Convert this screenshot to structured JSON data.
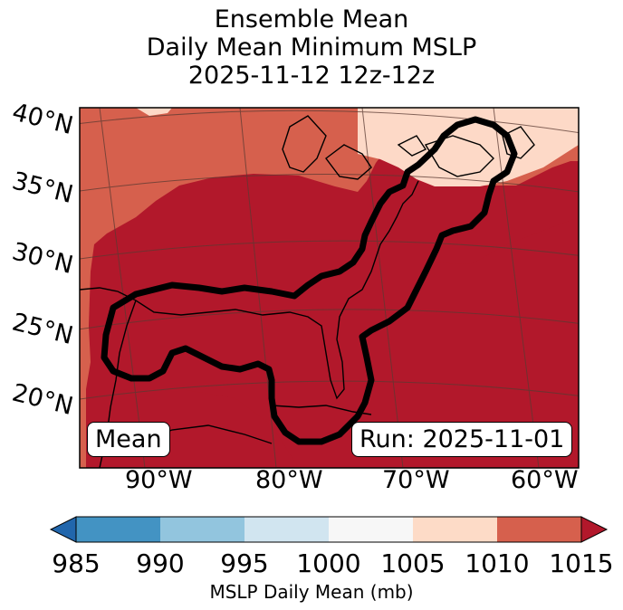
{
  "title": {
    "line1": "Ensemble Mean",
    "line2": "Daily Mean Minimum MSLP",
    "line3": "2025-11-12 12z-12z"
  },
  "map": {
    "lat_labels": [
      "40°N",
      "35°N",
      "30°N",
      "25°N",
      "20°N"
    ],
    "lon_labels": [
      "90°W",
      "80°W",
      "70°W",
      "60°W"
    ],
    "left_box": "Mean",
    "right_box": "Run: 2025-11-01",
    "colors": {
      "c1010_1015": "#b2182b",
      "c1005_1010": "#d6604d",
      "c1000_1005": "#fdd9c7",
      "contour": "#000000",
      "coast": "#000000",
      "grid": "#5a3a32"
    }
  },
  "colorbar": {
    "ticks": [
      "985",
      "990",
      "995",
      "1000",
      "1005",
      "1010",
      "1015"
    ],
    "label": "MSLP Daily Mean (mb)",
    "bins": [
      {
        "range": "<985",
        "color": "#2166ac"
      },
      {
        "range": "985-990",
        "color": "#4393c3"
      },
      {
        "range": "990-995",
        "color": "#92c5de"
      },
      {
        "range": "995-1000",
        "color": "#d1e5f0"
      },
      {
        "range": "1000-1005",
        "color": "#f7f7f7"
      },
      {
        "range": "1005-1010",
        "color": "#fddbc7"
      },
      {
        "range": "1010-1015",
        "color": "#d6604d"
      },
      {
        "range": ">1015",
        "color": "#b2182b"
      }
    ]
  }
}
